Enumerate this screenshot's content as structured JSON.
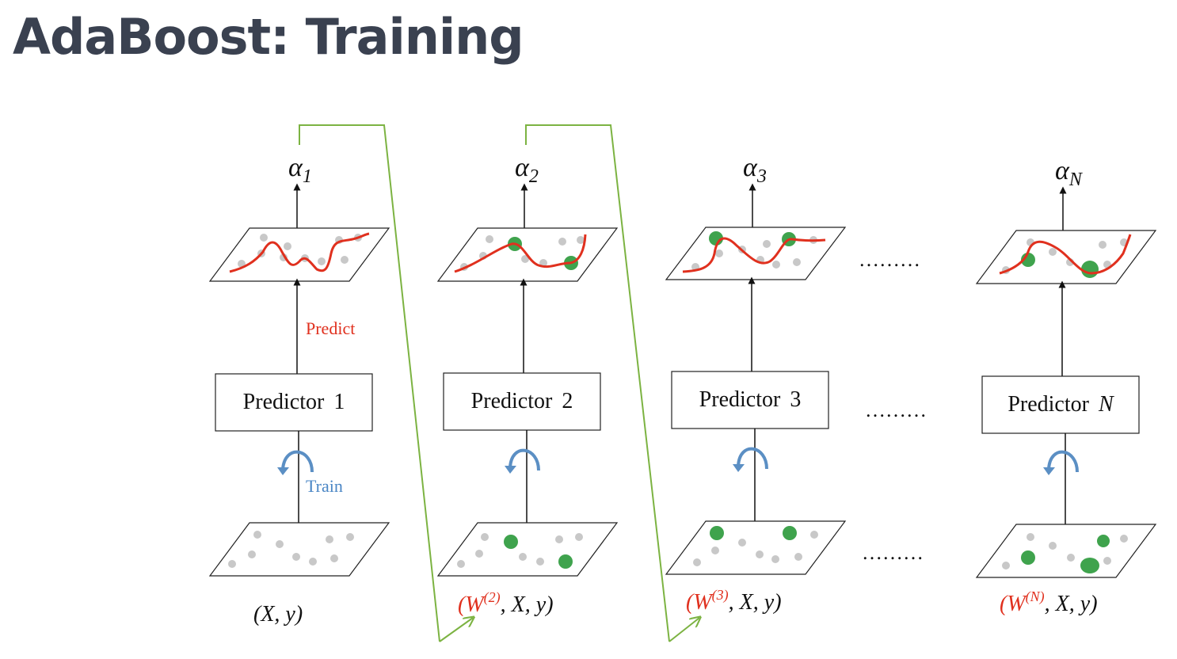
{
  "title": "AdaBoost: Training",
  "stages": [
    {
      "alpha": "α",
      "alpha_sub": "1",
      "predictor_label": "Predictor",
      "predictor_num": "1",
      "input_w": "",
      "input_w_sup": "",
      "input_rest": "(X, y)"
    },
    {
      "alpha": "α",
      "alpha_sub": "2",
      "predictor_label": "Predictor",
      "predictor_num": "2",
      "input_w": "(W",
      "input_w_sup": "(2)",
      "input_rest": ", X, y)"
    },
    {
      "alpha": "α",
      "alpha_sub": "3",
      "predictor_label": "Predictor",
      "predictor_num": "3",
      "input_w": "(W",
      "input_w_sup": "(3)",
      "input_rest": ", X, y)"
    },
    {
      "alpha": "α",
      "alpha_sub": "N",
      "predictor_label": "Predictor",
      "predictor_num": "N",
      "input_w": "(W",
      "input_w_sup": "(N)",
      "input_rest": ", X, y)"
    }
  ],
  "labels": {
    "predict": "Predict",
    "train": "Train"
  },
  "ellipsis": "………",
  "colors": {
    "title": "#3a4150",
    "prediction_curve": "#e0301e",
    "weighted_point": "#3fa34d",
    "point": "#c8c8c8",
    "weight_link": "#7cb342",
    "train_arrow": "#5b8fc4",
    "predict_text": "#e0301e",
    "train_text": "#4a86c5"
  }
}
